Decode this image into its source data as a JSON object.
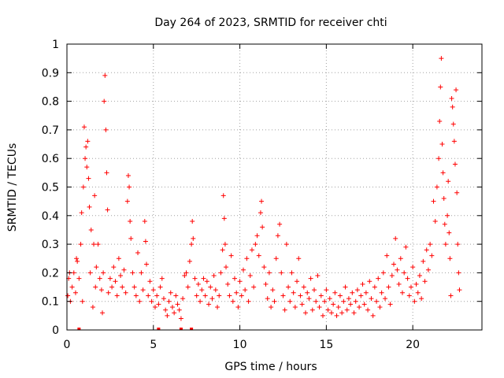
{
  "chart_data": {
    "type": "scatter",
    "title": "Day 264 of 2023, SRMTID for receiver chti",
    "xlabel": "GPS time / hours",
    "ylabel": "SRMTID / TECUs",
    "xlim": [
      0,
      24
    ],
    "ylim": [
      0,
      1
    ],
    "xticks": [
      0,
      5,
      10,
      15,
      20
    ],
    "xtick_labels": [
      "0",
      "5",
      "10",
      "15",
      "20"
    ],
    "yticks": [
      0,
      0.1,
      0.2,
      0.3,
      0.4,
      0.5,
      0.6,
      0.7,
      0.8,
      0.9,
      1
    ],
    "ytick_labels": [
      "0",
      "0.1",
      "0.2",
      "0.3",
      "0.4",
      "0.5",
      "0.6",
      "0.7",
      "0.8",
      "0.9",
      "1"
    ],
    "grid": true,
    "marker": "+",
    "color": "#ff0000",
    "series": [
      {
        "name": "SRMTID",
        "points": [
          [
            0.05,
            0.12
          ],
          [
            0.1,
            0.18
          ],
          [
            0.15,
            0.2
          ],
          [
            0.2,
            0.1
          ],
          [
            0.3,
            0.15
          ],
          [
            0.4,
            0.2
          ],
          [
            0.5,
            0.13
          ],
          [
            0.55,
            0.25
          ],
          [
            0.6,
            0.24
          ],
          [
            0.7,
            0.18
          ],
          [
            0.8,
            0.3
          ],
          [
            0.85,
            0.41
          ],
          [
            0.9,
            0.1
          ],
          [
            0.95,
            0.5
          ],
          [
            1.0,
            0.71
          ],
          [
            1.05,
            0.6
          ],
          [
            1.1,
            0.64
          ],
          [
            1.15,
            0.57
          ],
          [
            1.2,
            0.66
          ],
          [
            1.25,
            0.53
          ],
          [
            1.3,
            0.43
          ],
          [
            1.35,
            0.2
          ],
          [
            1.4,
            0.35
          ],
          [
            1.5,
            0.08
          ],
          [
            1.55,
            0.3
          ],
          [
            1.6,
            0.47
          ],
          [
            1.65,
            0.15
          ],
          [
            1.7,
            0.22
          ],
          [
            1.8,
            0.3
          ],
          [
            1.9,
            0.18
          ],
          [
            2.0,
            0.14
          ],
          [
            2.05,
            0.06
          ],
          [
            2.1,
            0.2
          ],
          [
            2.15,
            0.8
          ],
          [
            2.2,
            0.89
          ],
          [
            2.25,
            0.7
          ],
          [
            2.3,
            0.55
          ],
          [
            2.35,
            0.42
          ],
          [
            2.4,
            0.13
          ],
          [
            2.5,
            0.18
          ],
          [
            2.6,
            0.15
          ],
          [
            2.7,
            0.22
          ],
          [
            2.8,
            0.17
          ],
          [
            2.9,
            0.12
          ],
          [
            3.0,
            0.25
          ],
          [
            3.1,
            0.19
          ],
          [
            3.2,
            0.15
          ],
          [
            3.3,
            0.21
          ],
          [
            3.4,
            0.13
          ],
          [
            3.5,
            0.45
          ],
          [
            3.55,
            0.54
          ],
          [
            3.6,
            0.5
          ],
          [
            3.65,
            0.38
          ],
          [
            3.7,
            0.32
          ],
          [
            3.8,
            0.2
          ],
          [
            3.9,
            0.15
          ],
          [
            4.0,
            0.12
          ],
          [
            4.1,
            0.27
          ],
          [
            4.2,
            0.1
          ],
          [
            4.3,
            0.2
          ],
          [
            4.4,
            0.14
          ],
          [
            4.5,
            0.38
          ],
          [
            4.55,
            0.31
          ],
          [
            4.6,
            0.23
          ],
          [
            4.7,
            0.12
          ],
          [
            4.8,
            0.17
          ],
          [
            4.9,
            0.1
          ],
          [
            5.0,
            0.14
          ],
          [
            5.1,
            0.08
          ],
          [
            5.2,
            0.12
          ],
          [
            5.3,
            0.09
          ],
          [
            5.4,
            0.15
          ],
          [
            5.5,
            0.18
          ],
          [
            5.6,
            0.11
          ],
          [
            5.7,
            0.07
          ],
          [
            5.8,
            0.05
          ],
          [
            5.9,
            0.1
          ],
          [
            6.0,
            0.13
          ],
          [
            6.1,
            0.08
          ],
          [
            6.2,
            0.06
          ],
          [
            6.3,
            0.12
          ],
          [
            6.4,
            0.09
          ],
          [
            6.5,
            0.07
          ],
          [
            6.6,
            0.04
          ],
          [
            6.7,
            0.11
          ],
          [
            6.8,
            0.19
          ],
          [
            6.9,
            0.2
          ],
          [
            7.0,
            0.15
          ],
          [
            7.1,
            0.24
          ],
          [
            7.2,
            0.3
          ],
          [
            7.25,
            0.38
          ],
          [
            7.3,
            0.32
          ],
          [
            7.4,
            0.18
          ],
          [
            7.5,
            0.12
          ],
          [
            7.6,
            0.16
          ],
          [
            7.7,
            0.1
          ],
          [
            7.8,
            0.14
          ],
          [
            7.9,
            0.18
          ],
          [
            8.0,
            0.12
          ],
          [
            8.1,
            0.17
          ],
          [
            8.2,
            0.09
          ],
          [
            8.3,
            0.15
          ],
          [
            8.4,
            0.11
          ],
          [
            8.5,
            0.19
          ],
          [
            8.6,
            0.14
          ],
          [
            8.7,
            0.08
          ],
          [
            8.8,
            0.12
          ],
          [
            8.9,
            0.2
          ],
          [
            9.0,
            0.28
          ],
          [
            9.05,
            0.47
          ],
          [
            9.1,
            0.39
          ],
          [
            9.15,
            0.3
          ],
          [
            9.2,
            0.22
          ],
          [
            9.3,
            0.16
          ],
          [
            9.4,
            0.12
          ],
          [
            9.5,
            0.26
          ],
          [
            9.6,
            0.1
          ],
          [
            9.7,
            0.18
          ],
          [
            9.8,
            0.13
          ],
          [
            9.9,
            0.08
          ],
          [
            10.0,
            0.17
          ],
          [
            10.1,
            0.12
          ],
          [
            10.2,
            0.21
          ],
          [
            10.3,
            0.14
          ],
          [
            10.4,
            0.25
          ],
          [
            10.5,
            0.1
          ],
          [
            10.6,
            0.19
          ],
          [
            10.7,
            0.28
          ],
          [
            10.8,
            0.15
          ],
          [
            10.9,
            0.3
          ],
          [
            11.0,
            0.33
          ],
          [
            11.1,
            0.26
          ],
          [
            11.2,
            0.41
          ],
          [
            11.25,
            0.45
          ],
          [
            11.3,
            0.36
          ],
          [
            11.4,
            0.22
          ],
          [
            11.5,
            0.16
          ],
          [
            11.6,
            0.11
          ],
          [
            11.7,
            0.2
          ],
          [
            11.8,
            0.08
          ],
          [
            11.9,
            0.14
          ],
          [
            12.0,
            0.1
          ],
          [
            12.1,
            0.25
          ],
          [
            12.2,
            0.33
          ],
          [
            12.3,
            0.37
          ],
          [
            12.4,
            0.2
          ],
          [
            12.5,
            0.12
          ],
          [
            12.6,
            0.07
          ],
          [
            12.7,
            0.3
          ],
          [
            12.8,
            0.15
          ],
          [
            12.9,
            0.1
          ],
          [
            13.0,
            0.2
          ],
          [
            13.1,
            0.13
          ],
          [
            13.2,
            0.08
          ],
          [
            13.3,
            0.17
          ],
          [
            13.4,
            0.25
          ],
          [
            13.5,
            0.12
          ],
          [
            13.6,
            0.09
          ],
          [
            13.7,
            0.15
          ],
          [
            13.8,
            0.06
          ],
          [
            13.9,
            0.13
          ],
          [
            14.0,
            0.11
          ],
          [
            14.1,
            0.18
          ],
          [
            14.2,
            0.07
          ],
          [
            14.3,
            0.14
          ],
          [
            14.4,
            0.1
          ],
          [
            14.5,
            0.19
          ],
          [
            14.6,
            0.08
          ],
          [
            14.7,
            0.12
          ],
          [
            14.8,
            0.05
          ],
          [
            14.9,
            0.1
          ],
          [
            15.0,
            0.14
          ],
          [
            15.1,
            0.07
          ],
          [
            15.2,
            0.11
          ],
          [
            15.3,
            0.06
          ],
          [
            15.4,
            0.09
          ],
          [
            15.5,
            0.13
          ],
          [
            15.6,
            0.05
          ],
          [
            15.7,
            0.08
          ],
          [
            15.8,
            0.12
          ],
          [
            15.9,
            0.06
          ],
          [
            16.0,
            0.1
          ],
          [
            16.1,
            0.15
          ],
          [
            16.2,
            0.07
          ],
          [
            16.3,
            0.11
          ],
          [
            16.4,
            0.09
          ],
          [
            16.5,
            0.13
          ],
          [
            16.6,
            0.06
          ],
          [
            16.7,
            0.1
          ],
          [
            16.8,
            0.14
          ],
          [
            16.9,
            0.08
          ],
          [
            17.0,
            0.12
          ],
          [
            17.1,
            0.16
          ],
          [
            17.2,
            0.09
          ],
          [
            17.3,
            0.13
          ],
          [
            17.4,
            0.07
          ],
          [
            17.5,
            0.17
          ],
          [
            17.6,
            0.11
          ],
          [
            17.7,
            0.05
          ],
          [
            17.8,
            0.15
          ],
          [
            17.9,
            0.1
          ],
          [
            18.0,
            0.18
          ],
          [
            18.1,
            0.08
          ],
          [
            18.2,
            0.13
          ],
          [
            18.3,
            0.2
          ],
          [
            18.4,
            0.11
          ],
          [
            18.5,
            0.26
          ],
          [
            18.6,
            0.15
          ],
          [
            18.7,
            0.09
          ],
          [
            18.8,
            0.19
          ],
          [
            18.9,
            0.23
          ],
          [
            19.0,
            0.32
          ],
          [
            19.1,
            0.21
          ],
          [
            19.2,
            0.16
          ],
          [
            19.3,
            0.25
          ],
          [
            19.4,
            0.13
          ],
          [
            19.5,
            0.2
          ],
          [
            19.6,
            0.29
          ],
          [
            19.7,
            0.18
          ],
          [
            19.8,
            0.12
          ],
          [
            19.9,
            0.15
          ],
          [
            20.0,
            0.22
          ],
          [
            20.1,
            0.1
          ],
          [
            20.2,
            0.16
          ],
          [
            20.3,
            0.13
          ],
          [
            20.4,
            0.19
          ],
          [
            20.5,
            0.11
          ],
          [
            20.6,
            0.24
          ],
          [
            20.7,
            0.17
          ],
          [
            20.8,
            0.28
          ],
          [
            20.9,
            0.21
          ],
          [
            21.0,
            0.3
          ],
          [
            21.1,
            0.26
          ],
          [
            21.2,
            0.45
          ],
          [
            21.3,
            0.38
          ],
          [
            21.4,
            0.5
          ],
          [
            21.5,
            0.6
          ],
          [
            21.55,
            0.73
          ],
          [
            21.6,
            0.85
          ],
          [
            21.65,
            0.95
          ],
          [
            21.7,
            0.65
          ],
          [
            21.75,
            0.55
          ],
          [
            21.8,
            0.46
          ],
          [
            21.85,
            0.37
          ],
          [
            21.9,
            0.3
          ],
          [
            22.0,
            0.4
          ],
          [
            22.05,
            0.52
          ],
          [
            22.1,
            0.34
          ],
          [
            22.15,
            0.25
          ],
          [
            22.2,
            0.12
          ],
          [
            22.25,
            0.81
          ],
          [
            22.3,
            0.78
          ],
          [
            22.35,
            0.72
          ],
          [
            22.4,
            0.66
          ],
          [
            22.45,
            0.58
          ],
          [
            22.5,
            0.84
          ],
          [
            22.55,
            0.48
          ],
          [
            22.6,
            0.3
          ],
          [
            22.65,
            0.2
          ],
          [
            22.7,
            0.14
          ]
        ]
      }
    ],
    "zero_markers_x": [
      0.7,
      5.3,
      6.6,
      7.2
    ]
  }
}
